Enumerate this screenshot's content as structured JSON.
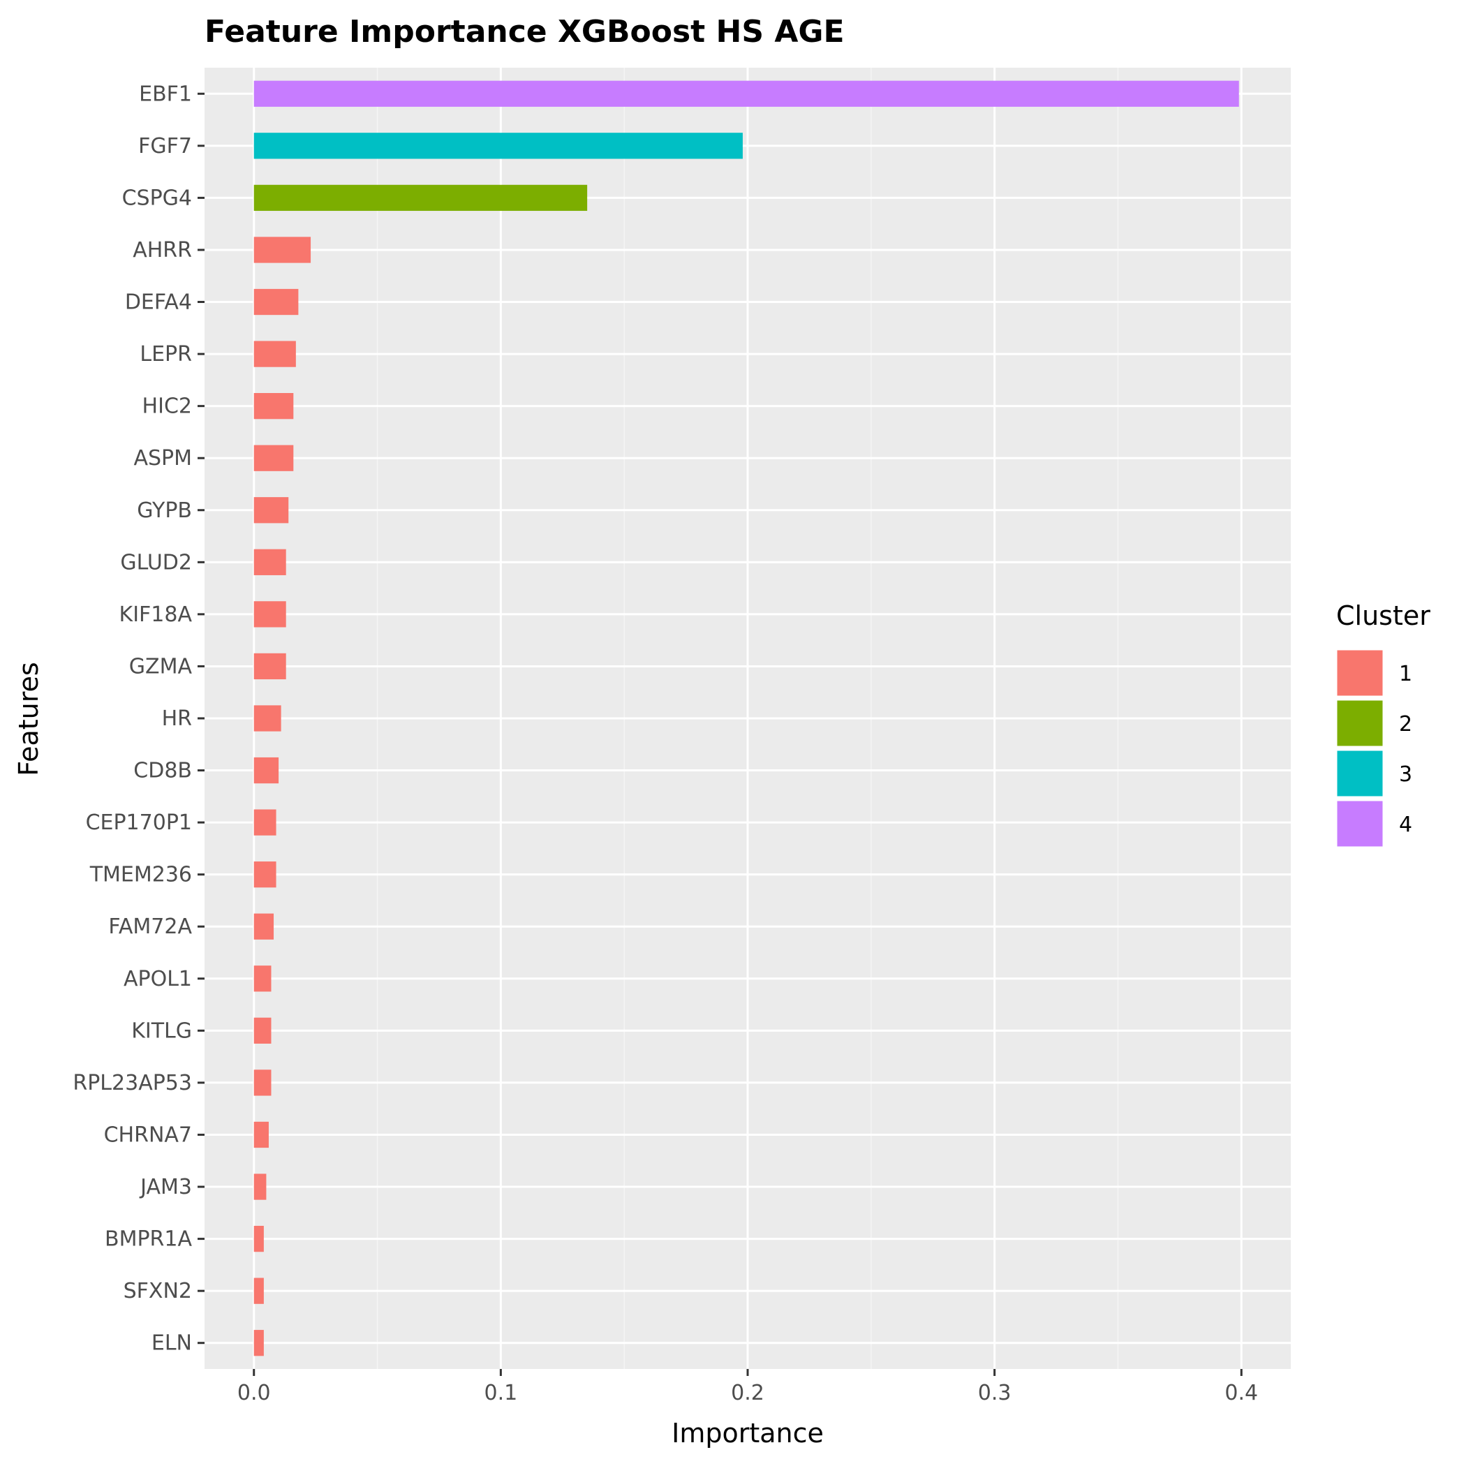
{
  "chart_data": {
    "type": "bar",
    "orientation": "horizontal",
    "title": "Feature Importance XGBoost HS AGE",
    "xlabel": "Importance",
    "ylabel": "Features",
    "xlim": [
      -0.02,
      0.42
    ],
    "xticks": [
      0.0,
      0.1,
      0.2,
      0.3,
      0.4
    ],
    "xtick_labels": [
      "0.0",
      "0.1",
      "0.2",
      "0.3",
      "0.4"
    ],
    "grid": true,
    "legend_position": "right",
    "legend": {
      "title": "Cluster",
      "entries": [
        {
          "label": "1",
          "color": "#F8766D"
        },
        {
          "label": "2",
          "color": "#7CAE00"
        },
        {
          "label": "3",
          "color": "#00BFC4"
        },
        {
          "label": "4",
          "color": "#C77CFF"
        }
      ]
    },
    "categories": [
      "EBF1",
      "FGF7",
      "CSPG4",
      "AHRR",
      "DEFA4",
      "LEPR",
      "HIC2",
      "ASPM",
      "GYPB",
      "GLUD2",
      "KIF18A",
      "GZMA",
      "HR",
      "CD8B",
      "CEP170P1",
      "TMEM236",
      "FAM72A",
      "APOL1",
      "KITLG",
      "RPL23AP53",
      "CHRNA7",
      "JAM3",
      "BMPR1A",
      "SFXN2",
      "ELN"
    ],
    "values": [
      0.399,
      0.198,
      0.135,
      0.023,
      0.018,
      0.017,
      0.016,
      0.016,
      0.014,
      0.013,
      0.013,
      0.013,
      0.011,
      0.01,
      0.009,
      0.009,
      0.008,
      0.007,
      0.007,
      0.007,
      0.006,
      0.005,
      0.004,
      0.004,
      0.004
    ],
    "cluster": [
      "4",
      "3",
      "2",
      "1",
      "1",
      "1",
      "1",
      "1",
      "1",
      "1",
      "1",
      "1",
      "1",
      "1",
      "1",
      "1",
      "1",
      "1",
      "1",
      "1",
      "1",
      "1",
      "1",
      "1",
      "1"
    ]
  },
  "colors": {
    "panel_background": "#EBEBEB",
    "grid_major": "#FFFFFF",
    "grid_minor": "#F5F5F5",
    "tick_text": "#4D4D4D",
    "tick_mark": "#333333"
  }
}
